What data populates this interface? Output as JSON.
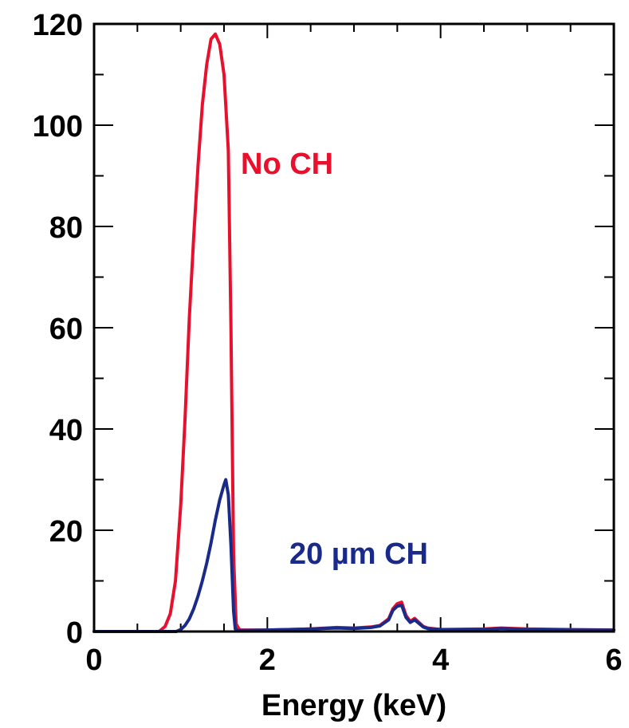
{
  "chart_data": {
    "type": "line",
    "title": "",
    "xlabel": "Energy (keV)",
    "ylabel": "",
    "xlim": [
      0,
      6
    ],
    "ylim": [
      0,
      120
    ],
    "x_ticks": [
      0,
      2,
      4,
      6
    ],
    "y_ticks": [
      0,
      20,
      40,
      60,
      80,
      100,
      120
    ],
    "grid": false,
    "legend": "none",
    "annotations": [
      {
        "text": "No CH",
        "color": "#e8112d"
      },
      {
        "text": "20 µm CH",
        "color": "#1a2a8a"
      }
    ],
    "series": [
      {
        "name": "No CH",
        "color": "#e8112d",
        "points": [
          [
            0.0,
            0.0
          ],
          [
            0.75,
            0.0
          ],
          [
            0.82,
            1.0
          ],
          [
            0.88,
            3.5
          ],
          [
            0.94,
            10
          ],
          [
            1.0,
            25
          ],
          [
            1.05,
            42
          ],
          [
            1.1,
            62
          ],
          [
            1.15,
            78
          ],
          [
            1.2,
            92
          ],
          [
            1.25,
            104
          ],
          [
            1.3,
            112
          ],
          [
            1.35,
            117
          ],
          [
            1.4,
            118
          ],
          [
            1.45,
            116
          ],
          [
            1.5,
            110
          ],
          [
            1.55,
            95
          ],
          [
            1.58,
            60
          ],
          [
            1.61,
            15
          ],
          [
            1.64,
            1.5
          ],
          [
            1.68,
            0.3
          ],
          [
            2.0,
            0.3
          ],
          [
            2.5,
            0.5
          ],
          [
            2.8,
            0.8
          ],
          [
            3.0,
            0.7
          ],
          [
            3.2,
            0.9
          ],
          [
            3.3,
            1.2
          ],
          [
            3.4,
            2.5
          ],
          [
            3.45,
            4.5
          ],
          [
            3.5,
            5.5
          ],
          [
            3.55,
            5.8
          ],
          [
            3.6,
            3.2
          ],
          [
            3.65,
            2.0
          ],
          [
            3.7,
            2.6
          ],
          [
            3.75,
            1.8
          ],
          [
            3.8,
            1.0
          ],
          [
            3.85,
            0.7
          ],
          [
            4.0,
            0.4
          ],
          [
            4.5,
            0.5
          ],
          [
            4.7,
            0.7
          ],
          [
            5.0,
            0.5
          ],
          [
            5.5,
            0.4
          ],
          [
            6.0,
            0.3
          ]
        ]
      },
      {
        "name": "20 µm CH",
        "color": "#1a2a8a",
        "points": [
          [
            0.0,
            0.0
          ],
          [
            0.95,
            0.0
          ],
          [
            1.0,
            0.4
          ],
          [
            1.05,
            1.2
          ],
          [
            1.1,
            2.5
          ],
          [
            1.15,
            4.5
          ],
          [
            1.2,
            7
          ],
          [
            1.25,
            10
          ],
          [
            1.3,
            13.5
          ],
          [
            1.35,
            17.5
          ],
          [
            1.4,
            22
          ],
          [
            1.45,
            26
          ],
          [
            1.5,
            29
          ],
          [
            1.52,
            30
          ],
          [
            1.55,
            27
          ],
          [
            1.58,
            17
          ],
          [
            1.61,
            4
          ],
          [
            1.63,
            0.5
          ],
          [
            1.66,
            0.2
          ],
          [
            2.0,
            0.3
          ],
          [
            2.5,
            0.5
          ],
          [
            2.8,
            0.7
          ],
          [
            3.0,
            0.6
          ],
          [
            3.2,
            0.8
          ],
          [
            3.3,
            1.1
          ],
          [
            3.4,
            2.3
          ],
          [
            3.45,
            4.2
          ],
          [
            3.5,
            5.0
          ],
          [
            3.55,
            5.2
          ],
          [
            3.6,
            2.8
          ],
          [
            3.65,
            1.8
          ],
          [
            3.7,
            2.3
          ],
          [
            3.75,
            1.6
          ],
          [
            3.8,
            0.9
          ],
          [
            3.85,
            0.6
          ],
          [
            4.0,
            0.4
          ],
          [
            4.5,
            0.4
          ],
          [
            4.7,
            0.6
          ],
          [
            5.0,
            0.4
          ],
          [
            5.5,
            0.3
          ],
          [
            6.0,
            0.3
          ]
        ]
      }
    ]
  }
}
